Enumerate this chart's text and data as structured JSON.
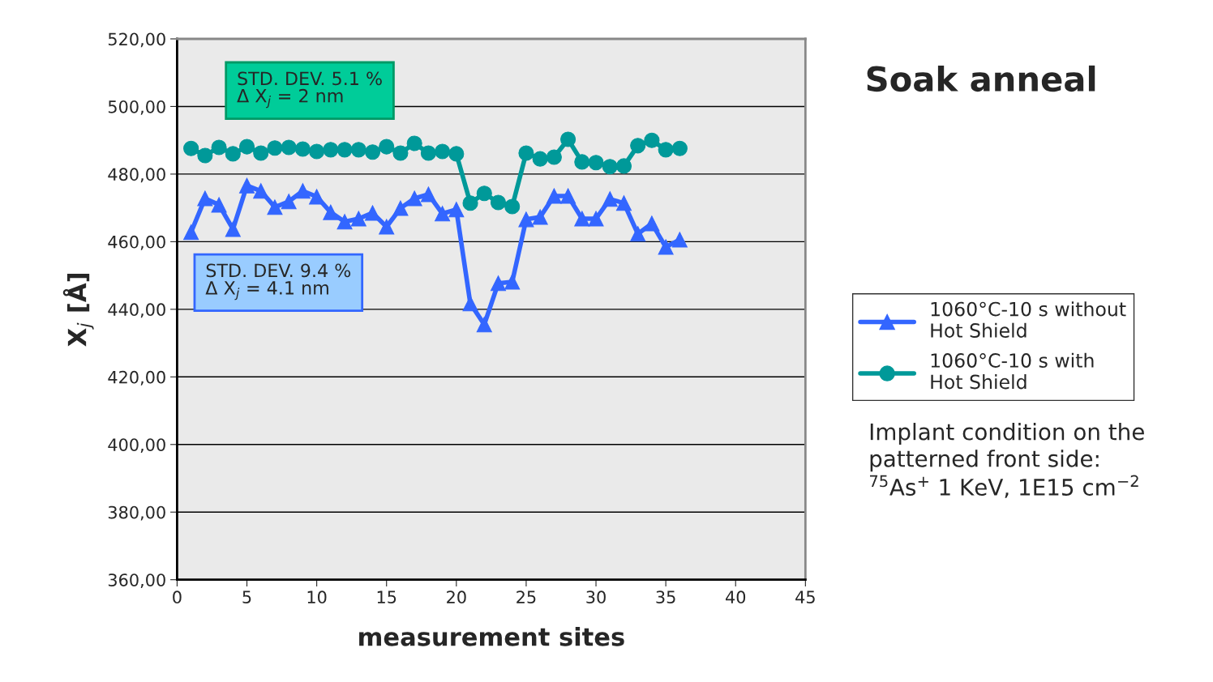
{
  "chart_data": {
    "type": "line",
    "title": "Soak anneal",
    "xlabel": "measurement sites",
    "ylabel": "X$_{j}$ [Å]",
    "x": [
      1,
      2,
      3,
      4,
      5,
      6,
      7,
      8,
      9,
      10,
      11,
      12,
      13,
      14,
      15,
      16,
      17,
      18,
      19,
      20,
      21,
      22,
      23,
      24,
      25,
      26,
      27,
      28,
      29,
      30,
      31,
      32,
      33,
      34,
      35,
      36
    ],
    "series": [
      {
        "name": "1060°C-10 s without\nHot Shield",
        "color": "#3366ff",
        "marker": "triangle",
        "values": [
          462.8,
          472.8,
          470.9,
          463.7,
          476.6,
          475.0,
          470.2,
          471.9,
          475.0,
          473.3,
          468.7,
          465.9,
          466.8,
          468.5,
          464.4,
          469.9,
          472.8,
          474.0,
          468.3,
          469.5,
          441.7,
          435.5,
          447.7,
          448.1,
          466.6,
          467.3,
          473.5,
          473.5,
          466.8,
          466.8,
          472.6,
          471.4,
          462.3,
          465.4,
          458.4,
          460.6
        ]
      },
      {
        "name": "1060°C-10 s with\nHot Shield",
        "color": "#009999",
        "marker": "circle",
        "values": [
          487.6,
          485.5,
          487.9,
          486.0,
          488.1,
          486.2,
          487.7,
          487.9,
          487.4,
          486.7,
          487.2,
          487.2,
          487.2,
          486.5,
          488.1,
          486.2,
          489.1,
          486.2,
          486.7,
          486.0,
          471.4,
          474.3,
          471.6,
          470.4,
          486.2,
          484.5,
          485.0,
          490.3,
          483.6,
          483.4,
          482.2,
          482.4,
          488.4,
          490.0,
          487.2,
          487.6
        ]
      }
    ],
    "xlim": [
      0,
      45
    ],
    "xticks": [
      0,
      5,
      10,
      15,
      20,
      25,
      30,
      35,
      40,
      45
    ],
    "ylim": [
      360,
      520
    ],
    "yticks": [
      {
        "value": 360,
        "label": "360,00"
      },
      {
        "value": 380,
        "label": "380,00"
      },
      {
        "value": 400,
        "label": "400,00"
      },
      {
        "value": 420,
        "label": "420,00"
      },
      {
        "value": 440,
        "label": "440,00"
      },
      {
        "value": 460,
        "label": "460,00"
      },
      {
        "value": 480,
        "label": "480,00"
      },
      {
        "value": 500,
        "label": "500,00"
      },
      {
        "value": 520,
        "label": "520,00"
      }
    ],
    "grid": "y",
    "legend": "right",
    "line_style": "solid",
    "annotations": [
      "STD. DEV. 5.1 %\nΔ X$_{j}$ = 2 nm",
      "STD. DEV. 9.4 %\nΔ X$_{j}$ = 4.1 nm",
      "Implant condition on the\npatterned front side:\n$^{75}$As$^{+}$ 1 KeV, 1E15 cm$^{−2}$"
    ]
  }
}
